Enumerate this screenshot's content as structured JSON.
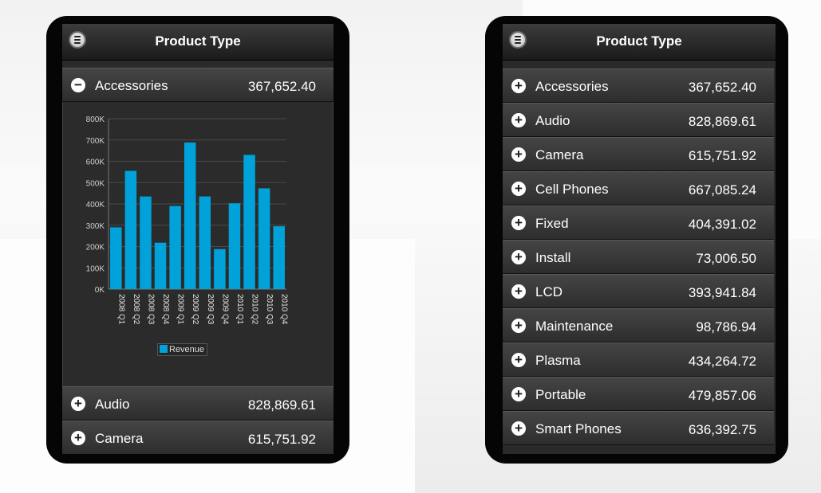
{
  "left_screen": {
    "title": "Product Type",
    "expanded_row": {
      "label": "Accessories",
      "value": "367,652.40",
      "icon": "minus-icon"
    },
    "rows_after": [
      {
        "label": "Audio",
        "value": "828,869.61",
        "icon": "plus-icon"
      },
      {
        "label": "Camera",
        "value": "615,751.92",
        "icon": "plus-icon"
      }
    ]
  },
  "right_screen": {
    "title": "Product Type",
    "rows": [
      {
        "label": "Accessories",
        "value": "367,652.40",
        "icon": "plus-icon"
      },
      {
        "label": "Audio",
        "value": "828,869.61",
        "icon": "plus-icon"
      },
      {
        "label": "Camera",
        "value": "615,751.92",
        "icon": "plus-icon"
      },
      {
        "label": "Cell Phones",
        "value": "667,085.24",
        "icon": "plus-icon"
      },
      {
        "label": "Fixed",
        "value": "404,391.02",
        "icon": "plus-icon"
      },
      {
        "label": "Install",
        "value": "73,006.50",
        "icon": "plus-icon"
      },
      {
        "label": "LCD",
        "value": "393,941.84",
        "icon": "plus-icon"
      },
      {
        "label": "Maintenance",
        "value": "98,786.94",
        "icon": "plus-icon"
      },
      {
        "label": "Plasma",
        "value": "434,264.72",
        "icon": "plus-icon"
      },
      {
        "label": "Portable",
        "value": "479,857.06",
        "icon": "plus-icon"
      },
      {
        "label": "Smart Phones",
        "value": "636,392.75",
        "icon": "plus-icon"
      }
    ]
  },
  "colors": {
    "bar": "#00a2d9",
    "header_text": "#ffffff"
  },
  "chart_data": {
    "type": "bar",
    "categories": [
      "2008 Q1",
      "2008 Q2",
      "2008 Q3",
      "2008 Q4",
      "2009 Q1",
      "2009 Q2",
      "2009 Q3",
      "2009 Q4",
      "2010 Q1",
      "2010 Q2",
      "2010 Q3",
      "2010 Q4"
    ],
    "series": [
      {
        "name": "Revenue",
        "values": [
          290000,
          555000,
          435000,
          218000,
          390000,
          688000,
          435000,
          188000,
          403000,
          630000,
          473000,
          295000
        ]
      }
    ],
    "yticks": [
      "0K",
      "100K",
      "200K",
      "300K",
      "400K",
      "500K",
      "600K",
      "700K",
      "800K"
    ],
    "ylim": [
      0,
      800000
    ],
    "legend_position": "bottom",
    "grid": true
  }
}
